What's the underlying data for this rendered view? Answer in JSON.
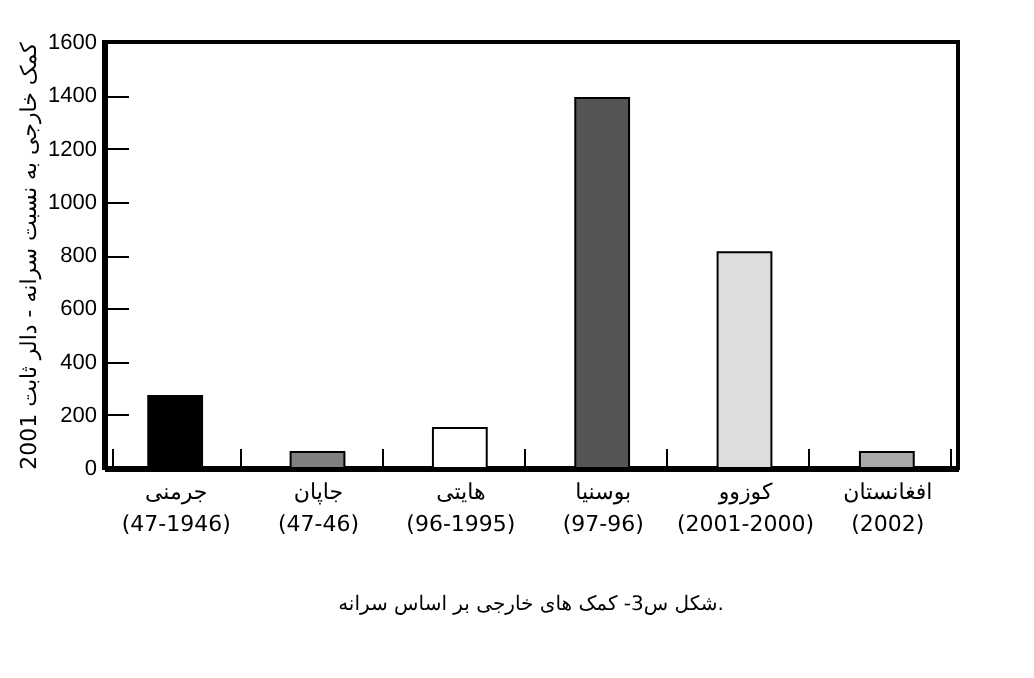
{
  "chart_data": {
    "type": "bar",
    "ylabel": "کمک خارجی به نسبت سرانه - دالر ثابت 2001",
    "categories": [
      "جرمنی\n(47-1946)",
      "جاپان\n(47-46)",
      "هایتی\n(96-1995)",
      "بوسنیا\n(97-96)",
      "کوزوو\n(2001-2000)",
      "افغانستان\n(2002)"
    ],
    "values": [
      270,
      60,
      150,
      1390,
      810,
      60
    ],
    "colors": [
      "#000000",
      "#808080",
      "#ffffff",
      "#555555",
      "#dddddd",
      "#aaaaaa"
    ],
    "ylim": [
      0,
      1600
    ],
    "yticks": [
      0,
      200,
      400,
      600,
      800,
      1000,
      1200,
      1400,
      1600
    ],
    "annotations": [
      "شکل س3- کمک های خارجی بر اساس سرانه."
    ]
  }
}
